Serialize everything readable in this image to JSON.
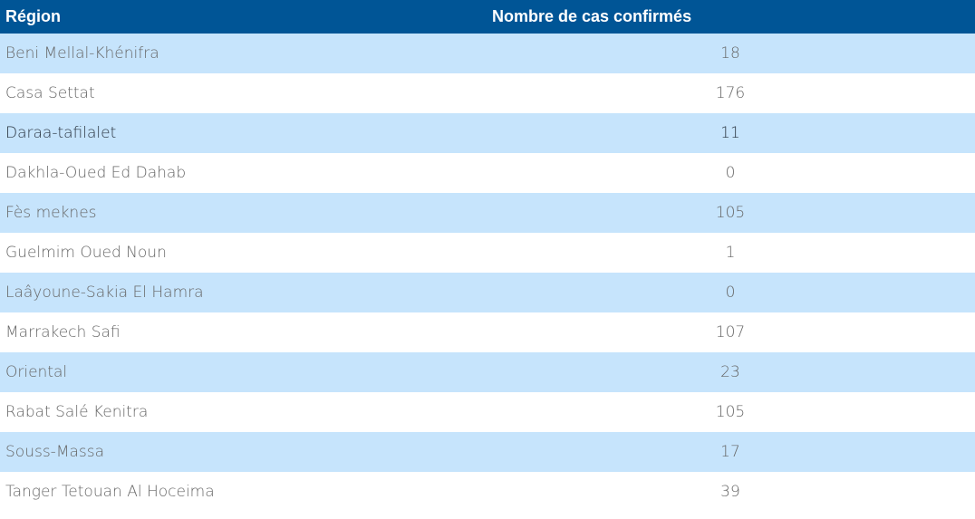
{
  "table": {
    "header": [
      "Région",
      "Nombre de cas confirmés"
    ],
    "rows": [
      [
        "Beni Mellal-Khénifra",
        18
      ],
      [
        "Casa Settat",
        176
      ],
      [
        "Daraa-tafilalet",
        11
      ],
      [
        "Dakhla-Oued Ed Dahab",
        0
      ],
      [
        "Fès meknes",
        105
      ],
      [
        "Guelmim Oued Noun",
        1
      ],
      [
        "Laâyoune-Sakia El Hamra",
        0
      ],
      [
        "Marrakech Safi",
        107
      ],
      [
        "Oriental",
        23
      ],
      [
        "Rabat Salé Kenitra",
        105
      ],
      [
        "Souss-Massa",
        17
      ],
      [
        "Tanger Tetouan Al Hoceima",
        39
      ]
    ]
  }
}
